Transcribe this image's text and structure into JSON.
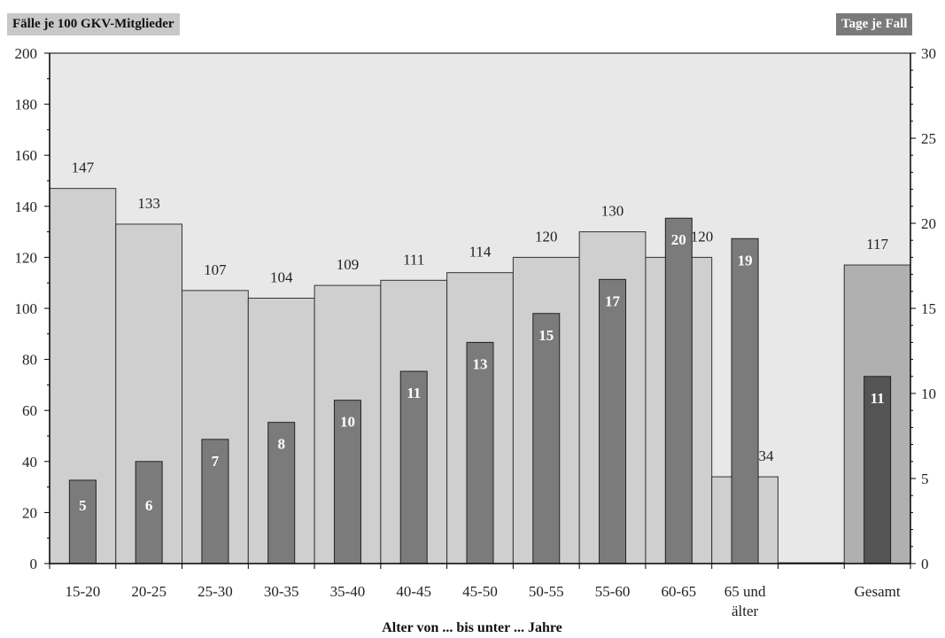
{
  "chart_data": {
    "type": "bar",
    "left_axis_label": "Fälle je 100 GKV-Mitglieder",
    "right_axis_label": "Tage je Fall",
    "xlabel": "Alter von ... bis unter ... Jahre",
    "categories": [
      "15-20",
      "20-25",
      "25-30",
      "30-35",
      "35-40",
      "40-45",
      "45-50",
      "50-55",
      "55-60",
      "60-65",
      "65 und älter",
      "",
      "Gesamt"
    ],
    "left_ylim": [
      0,
      200
    ],
    "left_yticks": [
      0,
      20,
      40,
      60,
      80,
      100,
      120,
      140,
      160,
      180,
      200
    ],
    "right_ylim": [
      0,
      30
    ],
    "right_yticks": [
      0,
      5,
      10,
      15,
      20,
      25,
      30
    ],
    "series": [
      {
        "axis": "left",
        "values": [
          147,
          133,
          107,
          104,
          109,
          111,
          114,
          120,
          130,
          120,
          34,
          0.3,
          117
        ],
        "labels": [
          "147",
          "133",
          "107",
          "104",
          "109",
          "111",
          "114",
          "120",
          "130",
          "120",
          "34",
          "",
          "117"
        ]
      },
      {
        "axis": "right",
        "values": [
          4.9,
          6.0,
          7.3,
          8.3,
          9.6,
          11.3,
          13.0,
          14.7,
          16.7,
          20.3,
          19.1,
          null,
          11.0
        ],
        "labels": [
          "5",
          "6",
          "7",
          "8",
          "10",
          "11",
          "13",
          "15",
          "17",
          "20",
          "19",
          "",
          "11"
        ]
      }
    ],
    "colors": {
      "plot_bg": "#e8e8e8",
      "wide_bar": "#cfcfcf",
      "wide_bar_total": "#b0b0b0",
      "narrow_bar": "#7b7b7b",
      "narrow_bar_total": "#545454"
    }
  }
}
